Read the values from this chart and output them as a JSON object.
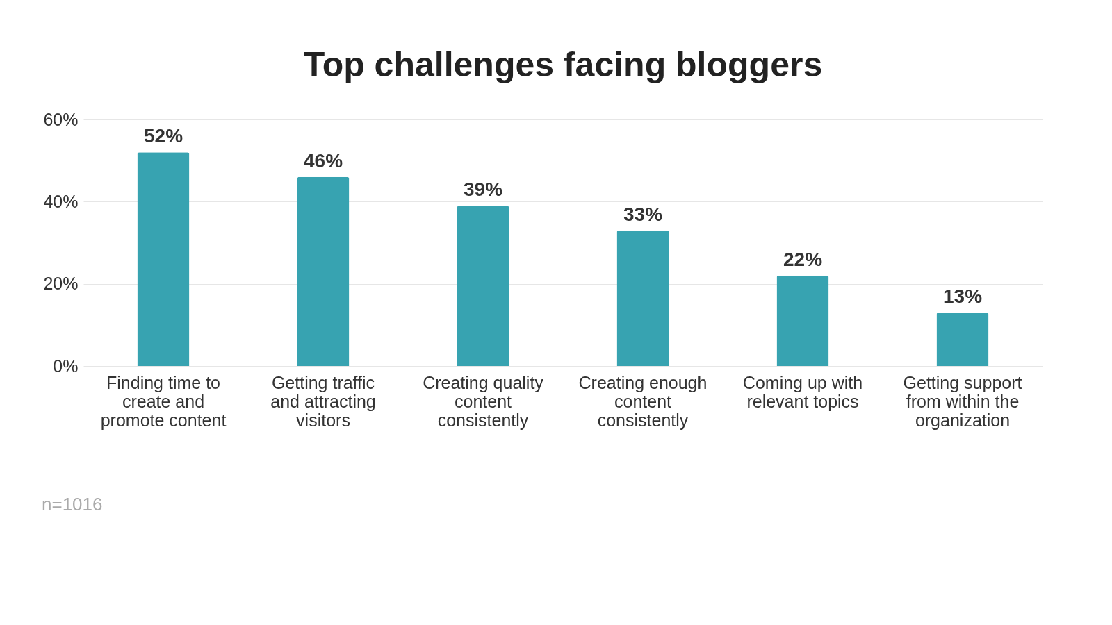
{
  "chart_data": {
    "type": "bar",
    "title": "Top challenges facing bloggers",
    "categories": [
      "Finding time to create and promote content",
      "Getting traffic and attracting visitors",
      "Creating quality content consistently",
      "Creating enough content consistently",
      "Coming up with relevant topics",
      "Getting support from within the organization"
    ],
    "values": [
      52,
      46,
      39,
      33,
      22,
      13
    ],
    "color": "#37a3b1",
    "ylim": [
      0,
      60
    ],
    "yticks": [
      {
        "value": 0,
        "label": "0%"
      },
      {
        "value": 20,
        "label": "20%"
      },
      {
        "value": 40,
        "label": "40%"
      },
      {
        "value": 60,
        "label": "60%"
      }
    ],
    "value_labels": [
      "52%",
      "46%",
      "39%",
      "33%",
      "22%",
      "13%"
    ],
    "grid": "y",
    "annotations": [
      "n=1016"
    ]
  }
}
